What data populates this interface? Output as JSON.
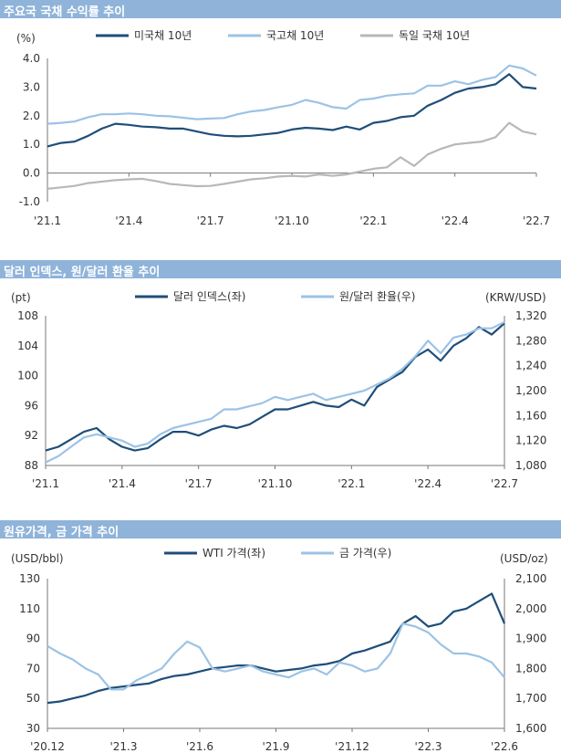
{
  "colors": {
    "dark": "#1f4e79",
    "light": "#9cc3e5",
    "gray": "#b8b8b8",
    "header": "#8fb3d9"
  },
  "chart_data": [
    {
      "type": "line",
      "title": "주요국 국채 수익률 추이",
      "ylabel": "(%)",
      "ylim": [
        -1.0,
        4.0
      ],
      "yticks": [
        "4.0",
        "3.0",
        "2.0",
        "1.0",
        "0.0",
        "-1.0"
      ],
      "xticks": [
        "'21.1",
        "'21.4",
        "'21.7",
        "'21.10",
        "'22.1",
        "'22.4",
        "'22.7"
      ],
      "series": [
        {
          "name": "미국채 10년",
          "values": [
            0.93,
            1.05,
            1.1,
            1.3,
            1.55,
            1.72,
            1.68,
            1.62,
            1.6,
            1.55,
            1.55,
            1.45,
            1.35,
            1.3,
            1.28,
            1.3,
            1.35,
            1.4,
            1.52,
            1.58,
            1.55,
            1.5,
            1.62,
            1.52,
            1.75,
            1.82,
            1.95,
            2.0,
            2.35,
            2.55,
            2.8,
            2.95,
            3.0,
            3.1,
            3.45,
            3.0,
            2.95
          ]
        },
        {
          "name": "국고채 10년",
          "values": [
            1.72,
            1.75,
            1.8,
            1.95,
            2.05,
            2.05,
            2.08,
            2.05,
            2.0,
            1.98,
            1.93,
            1.88,
            1.9,
            1.92,
            2.05,
            2.15,
            2.2,
            2.3,
            2.38,
            2.55,
            2.45,
            2.3,
            2.25,
            2.55,
            2.6,
            2.7,
            2.75,
            2.78,
            3.05,
            3.05,
            3.2,
            3.1,
            3.25,
            3.35,
            3.75,
            3.65,
            3.4
          ]
        },
        {
          "name": "독일 국채 10년",
          "values": [
            -0.55,
            -0.5,
            -0.45,
            -0.35,
            -0.3,
            -0.25,
            -0.22,
            -0.2,
            -0.28,
            -0.38,
            -0.42,
            -0.46,
            -0.45,
            -0.38,
            -0.3,
            -0.22,
            -0.18,
            -0.12,
            -0.1,
            -0.12,
            -0.05,
            -0.1,
            -0.05,
            0.05,
            0.15,
            0.2,
            0.55,
            0.25,
            0.65,
            0.85,
            1.0,
            1.05,
            1.1,
            1.25,
            1.75,
            1.45,
            1.35
          ]
        }
      ]
    },
    {
      "type": "line",
      "title": "달러 인덱스, 원/달러 환율 추이",
      "ylabel_left": "(pt)",
      "ylabel_right": "(KRW/USD)",
      "ylim_left": [
        88,
        108
      ],
      "ylim_right": [
        1080,
        1320
      ],
      "yticks_left": [
        "108",
        "104",
        "100",
        "96",
        "92",
        "88"
      ],
      "yticks_right": [
        "1,320",
        "1,280",
        "1,240",
        "1,200",
        "1,160",
        "1,120",
        "1,080"
      ],
      "xticks": [
        "'21.1",
        "'21.4",
        "'21.7",
        "'21.10",
        "'22.1",
        "'22.4",
        "'22.7"
      ],
      "series": [
        {
          "name": "달러 인덱스(좌)",
          "axis": "left",
          "values": [
            90.0,
            90.5,
            91.5,
            92.5,
            93.0,
            91.5,
            90.5,
            90.0,
            90.3,
            91.5,
            92.5,
            92.5,
            92.0,
            92.8,
            93.3,
            93.0,
            93.5,
            94.5,
            95.5,
            95.5,
            96.0,
            96.5,
            96.0,
            95.8,
            96.8,
            96.0,
            98.5,
            99.5,
            100.5,
            102.5,
            103.5,
            102.0,
            104.0,
            105.0,
            106.5,
            105.5,
            107.0
          ]
        },
        {
          "name": "원/달러 환율(우)",
          "axis": "right",
          "values": [
            1085,
            1095,
            1110,
            1125,
            1130,
            1125,
            1120,
            1110,
            1115,
            1130,
            1140,
            1145,
            1150,
            1155,
            1170,
            1170,
            1175,
            1180,
            1190,
            1185,
            1190,
            1195,
            1185,
            1190,
            1195,
            1200,
            1210,
            1220,
            1235,
            1255,
            1280,
            1260,
            1285,
            1290,
            1300,
            1300,
            1310
          ]
        }
      ]
    },
    {
      "type": "line",
      "title": "원유가격, 금 가격 추이",
      "ylabel_left": "(USD/bbl)",
      "ylabel_right": "(USD/oz)",
      "ylim_left": [
        30,
        130
      ],
      "ylim_right": [
        1600,
        2100
      ],
      "yticks_left": [
        "130",
        "110",
        "90",
        "70",
        "50",
        "30"
      ],
      "yticks_right": [
        "2,100",
        "2,000",
        "1,900",
        "1,800",
        "1,700",
        "1,600"
      ],
      "xticks": [
        "'20.12",
        "'21.3",
        "'21.6",
        "'21.9",
        "'21.12",
        "'22.3",
        "'22.6"
      ],
      "series": [
        {
          "name": "WTI 가격(좌)",
          "axis": "left",
          "values": [
            47,
            48,
            50,
            52,
            55,
            57,
            58,
            59,
            60,
            63,
            65,
            66,
            68,
            70,
            71,
            72,
            72,
            70,
            68,
            69,
            70,
            72,
            73,
            75,
            80,
            82,
            85,
            88,
            100,
            105,
            98,
            100,
            108,
            110,
            115,
            120,
            100
          ]
        },
        {
          "name": "금 가격(우)",
          "axis": "right",
          "values": [
            1875,
            1850,
            1830,
            1800,
            1780,
            1730,
            1730,
            1760,
            1780,
            1800,
            1850,
            1890,
            1870,
            1800,
            1790,
            1800,
            1810,
            1790,
            1780,
            1770,
            1790,
            1800,
            1780,
            1820,
            1810,
            1790,
            1800,
            1850,
            1950,
            1940,
            1920,
            1880,
            1850,
            1850,
            1840,
            1820,
            1770
          ]
        }
      ]
    }
  ]
}
